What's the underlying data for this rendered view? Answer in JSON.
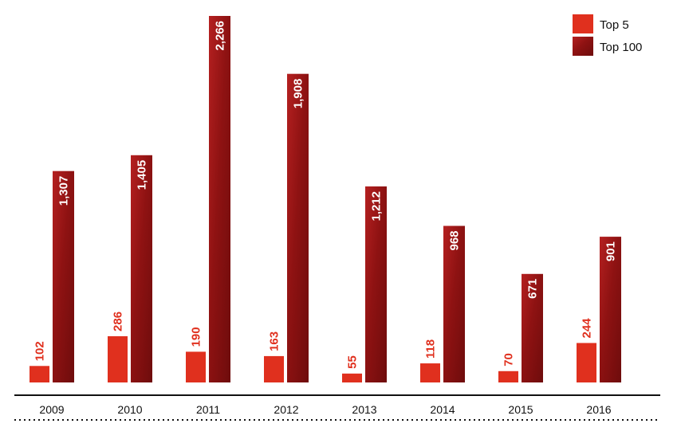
{
  "chart_data": {
    "type": "bar",
    "categories": [
      "2009",
      "2010",
      "2011",
      "2012",
      "2013",
      "2014",
      "2015",
      "2016"
    ],
    "series": [
      {
        "name": "Top 5",
        "values": [
          102,
          286,
          190,
          163,
          55,
          118,
          70,
          244
        ],
        "labels": [
          "102",
          "286",
          "190",
          "163",
          "55",
          "118",
          "70",
          "244"
        ],
        "color": "#e0301e"
      },
      {
        "name": "Top 100",
        "values": [
          1307,
          1405,
          2266,
          1908,
          1212,
          968,
          671,
          901
        ],
        "labels": [
          "1,307",
          "1,405",
          "2,266",
          "1,908",
          "1,212",
          "968",
          "671",
          "901"
        ],
        "color": "#a01818"
      }
    ],
    "ylim": [
      0,
      2266
    ],
    "grid": false,
    "legend_position": "top-right",
    "data_labels": "vertical"
  }
}
